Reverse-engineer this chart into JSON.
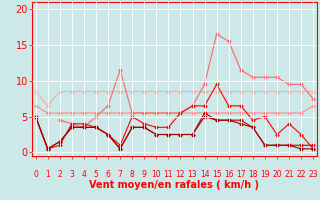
{
  "x": [
    0,
    1,
    2,
    3,
    4,
    5,
    6,
    7,
    8,
    9,
    10,
    11,
    12,
    13,
    14,
    15,
    16,
    17,
    18,
    19,
    20,
    21,
    22,
    23
  ],
  "series": [
    {
      "color": "#ffaaaa",
      "lw": 0.8,
      "marker": "D",
      "ms": 1.5,
      "y": [
        8.5,
        6.5,
        8.5,
        8.5,
        8.5,
        8.5,
        8.5,
        8.5,
        8.5,
        8.5,
        8.5,
        8.5,
        8.5,
        8.5,
        8.5,
        8.5,
        8.5,
        8.5,
        8.5,
        8.5,
        8.5,
        8.5,
        8.5,
        8.5
      ]
    },
    {
      "color": "#ff8888",
      "lw": 0.8,
      "marker": "D",
      "ms": 1.5,
      "y": [
        6.5,
        5.5,
        5.5,
        5.5,
        5.5,
        5.5,
        5.5,
        5.5,
        5.5,
        5.5,
        5.5,
        5.5,
        5.5,
        5.5,
        5.5,
        5.5,
        5.5,
        5.5,
        5.5,
        5.5,
        5.5,
        5.5,
        5.5,
        6.5
      ]
    },
    {
      "color": "#ff6666",
      "lw": 0.8,
      "marker": "D",
      "ms": 1.5,
      "y": [
        null,
        null,
        4.5,
        4.0,
        3.5,
        5.0,
        6.5,
        11.5,
        5.5,
        5.5,
        5.5,
        5.5,
        5.5,
        6.5,
        9.5,
        16.5,
        15.5,
        11.5,
        10.5,
        10.5,
        10.5,
        9.5,
        9.5,
        7.5
      ]
    },
    {
      "color": "#ff0000",
      "lw": 0.8,
      "marker": "D",
      "ms": 1.5,
      "y": [
        5.0,
        0.5,
        1.0,
        4.0,
        4.0,
        3.5,
        2.5,
        1.0,
        5.0,
        4.0,
        3.5,
        3.5,
        5.5,
        6.5,
        6.5,
        9.5,
        6.5,
        6.5,
        4.5,
        5.0,
        2.5,
        4.0,
        2.5,
        0.5
      ]
    },
    {
      "color": "#cc0000",
      "lw": 0.8,
      "marker": "D",
      "ms": 1.5,
      "y": [
        5.0,
        0.5,
        1.5,
        3.5,
        3.5,
        3.5,
        2.5,
        0.5,
        3.5,
        3.5,
        2.5,
        2.5,
        2.5,
        2.5,
        5.5,
        4.5,
        4.5,
        4.5,
        3.5,
        1.0,
        1.0,
        1.0,
        1.0,
        1.0
      ]
    },
    {
      "color": "#990000",
      "lw": 0.8,
      "marker": "D",
      "ms": 1.5,
      "y": [
        5.0,
        0.5,
        1.5,
        3.5,
        3.5,
        3.5,
        2.5,
        0.5,
        3.5,
        3.5,
        2.5,
        2.5,
        2.5,
        2.5,
        5.0,
        4.5,
        4.5,
        4.0,
        3.5,
        1.0,
        1.0,
        1.0,
        0.5,
        0.5
      ]
    }
  ],
  "xlim": [
    -0.3,
    23.3
  ],
  "ylim": [
    -0.5,
    21
  ],
  "yticks": [
    0,
    5,
    10,
    15,
    20
  ],
  "xticks": [
    0,
    1,
    2,
    3,
    4,
    5,
    6,
    7,
    8,
    9,
    10,
    11,
    12,
    13,
    14,
    15,
    16,
    17,
    18,
    19,
    20,
    21,
    22,
    23
  ],
  "xlabel": "Vent moyen/en rafales ( km/h )",
  "bg_color": "#cce8e8",
  "grid_color": "#ffffff",
  "tick_color": "#ff0000",
  "label_color": "#ff0000",
  "xlabel_fontsize": 7,
  "ytick_fontsize": 7,
  "xtick_fontsize": 5.5
}
